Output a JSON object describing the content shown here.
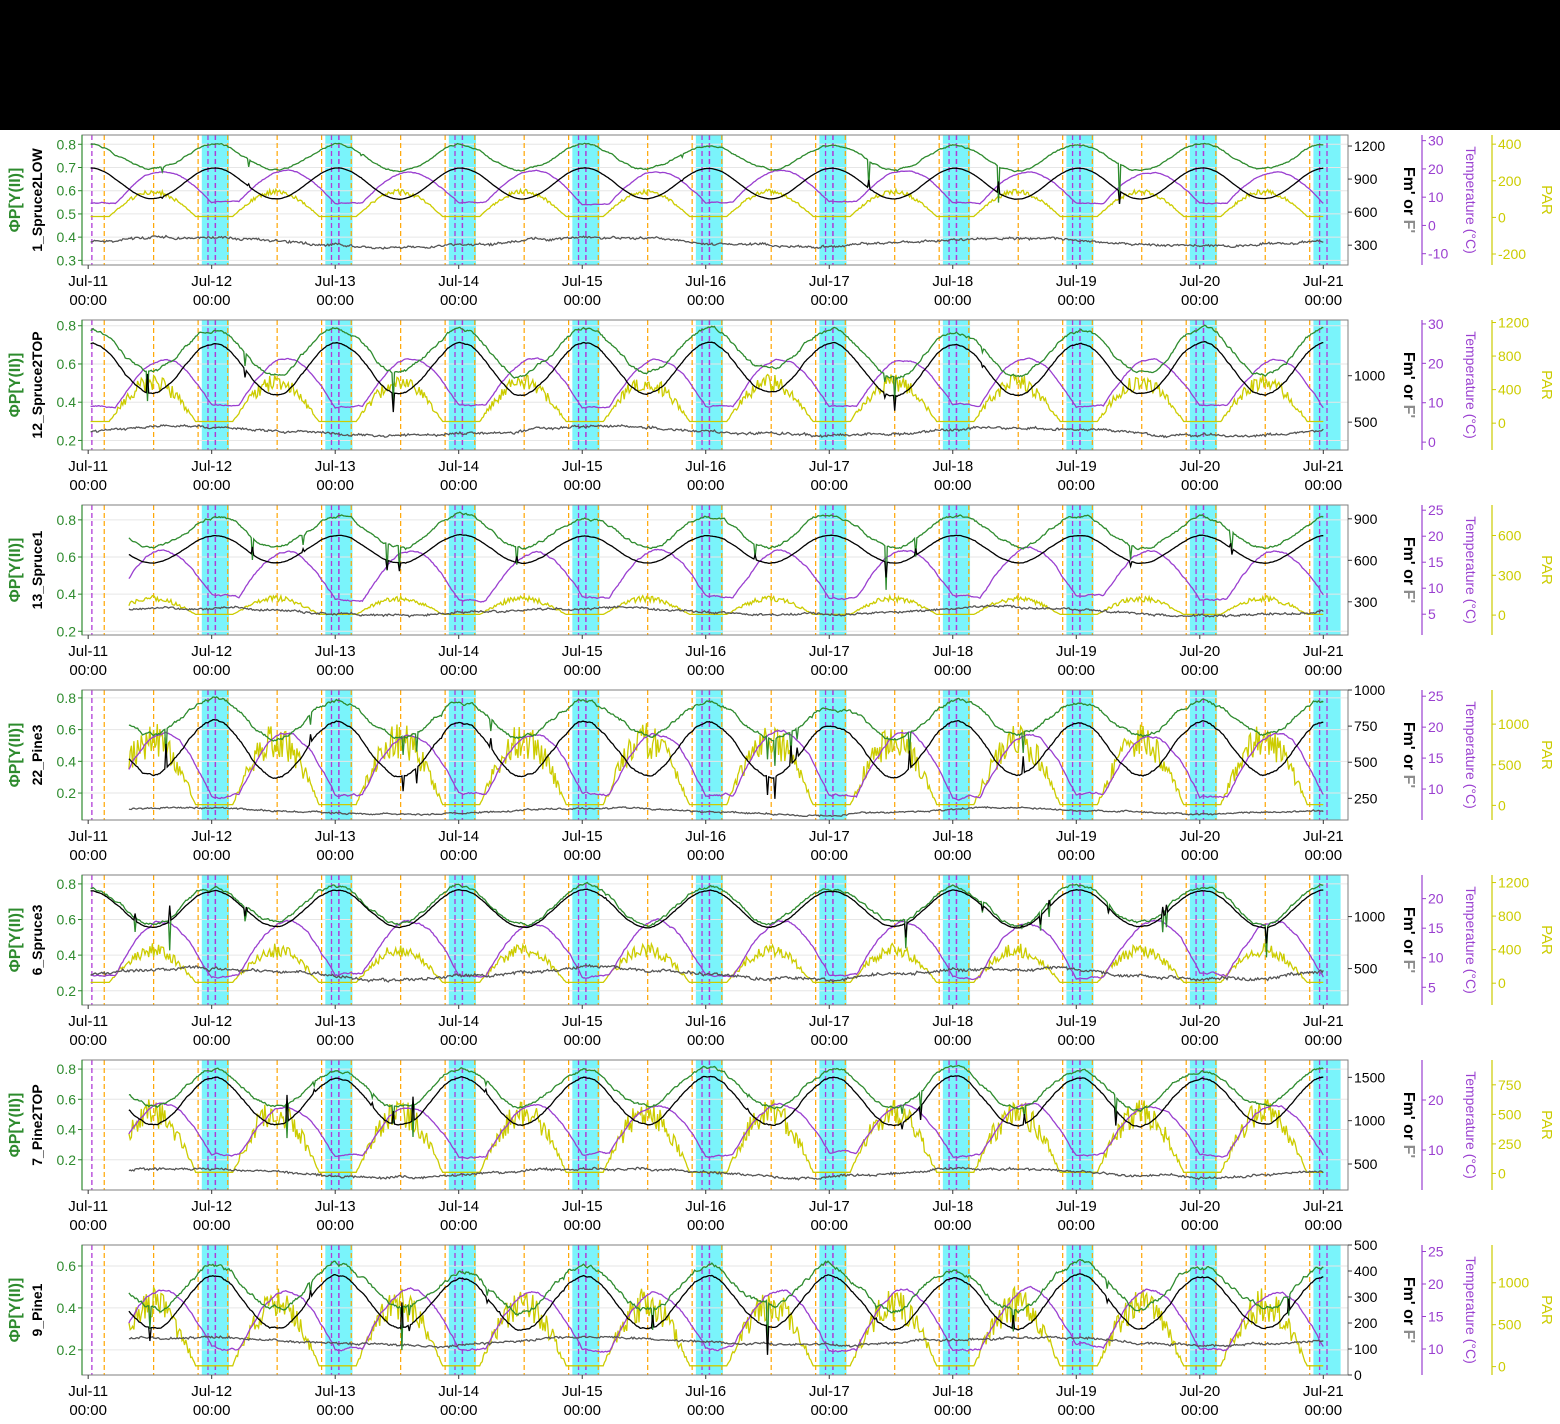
{
  "colors": {
    "yield": "#2e8b2e",
    "fm": "#000000",
    "fprime": "#555555",
    "temp": "#9a3fd0",
    "par": "#cccc00",
    "dawn_dusk": "#ffa500",
    "midnight": "#b03bd6",
    "night_band": "#7af4fb"
  },
  "x_axis": {
    "tick_dates": [
      "Jul-11",
      "Jul-12",
      "Jul-13",
      "Jul-14",
      "Jul-15",
      "Jul-16",
      "Jul-17",
      "Jul-18",
      "Jul-19",
      "Jul-20",
      "Jul-21"
    ],
    "tick_time": "00:00",
    "range_days": [
      -0.05,
      10.2
    ]
  },
  "y_labels": {
    "left": "ΦP[Y(II)]",
    "right_fm_part1": "Fm' ",
    "right_fm_part2": "or ",
    "right_fm_part3": "F'",
    "right_temp": "Temperature (°C)",
    "right_par": "PAR"
  },
  "chart_data": [
    {
      "type": "line",
      "panel": "1_Spruce2LOW",
      "y_left_ticks": [
        0.3,
        0.4,
        0.5,
        0.6,
        0.7,
        0.8
      ],
      "y_left_range": [
        0.28,
        0.84
      ],
      "fm_ticks": [
        300,
        600,
        900,
        1200
      ],
      "fm_range": [
        120,
        1300
      ],
      "temp_ticks": [
        -10,
        0,
        10,
        20,
        30
      ],
      "temp_range": [
        -14,
        32
      ],
      "par_ticks": [
        -200,
        0,
        200,
        400
      ],
      "par_range": [
        -260,
        450
      ],
      "levels": {
        "yield_day": 0.69,
        "yield_night": 0.8,
        "fm_day": 720,
        "fm_night": 1000,
        "f": 330,
        "temp_day": 19,
        "temp_night": 8,
        "par_peak": 130,
        "par_base": 5
      },
      "noise": 0.15,
      "start": 0.02
    },
    {
      "type": "line",
      "panel": "12_Spruce2TOP",
      "y_left_ticks": [
        0.2,
        0.4,
        0.6,
        0.8
      ],
      "y_left_range": [
        0.15,
        0.83
      ],
      "fm_ticks": [
        500,
        1000
      ],
      "fm_range": [
        200,
        1600
      ],
      "temp_ticks": [
        0,
        10,
        20,
        30
      ],
      "temp_range": [
        -2,
        31
      ],
      "par_ticks": [
        0,
        400,
        800,
        1200
      ],
      "par_range": [
        -320,
        1230
      ],
      "levels": {
        "yield_day": 0.55,
        "yield_night": 0.78,
        "fm_day": 800,
        "fm_night": 1350,
        "f": 400,
        "temp_day": 21,
        "temp_night": 9,
        "par_peak": 420,
        "par_base": 20
      },
      "noise": 0.35,
      "start": 0.02
    },
    {
      "type": "line",
      "panel": "13_Spruce1",
      "y_left_ticks": [
        0.2,
        0.4,
        0.6,
        0.8
      ],
      "y_left_range": [
        0.18,
        0.88
      ],
      "fm_ticks": [
        300,
        600,
        900
      ],
      "fm_range": [
        60,
        1000
      ],
      "temp_ticks": [
        5,
        10,
        15,
        20,
        25
      ],
      "temp_range": [
        1,
        26
      ],
      "par_ticks": [
        0,
        300,
        600
      ],
      "par_range": [
        -150,
        830
      ],
      "levels": {
        "yield_day": 0.65,
        "yield_night": 0.82,
        "fm_day": 580,
        "fm_night": 780,
        "f": 230,
        "temp_day": 17,
        "temp_night": 8,
        "par_peak": 110,
        "par_base": 5
      },
      "noise": 0.3,
      "start": 0.33
    },
    {
      "type": "line",
      "panel": "22_Pine3",
      "y_left_ticks": [
        0.2,
        0.4,
        0.6,
        0.8
      ],
      "y_left_range": [
        0.03,
        0.85
      ],
      "fm_ticks": [
        250,
        500,
        750,
        1000
      ],
      "fm_range": [
        100,
        1000
      ],
      "temp_ticks": [
        10,
        15,
        20,
        25
      ],
      "temp_range": [
        5,
        26
      ],
      "par_ticks": [
        0,
        500,
        1000
      ],
      "par_range": [
        -180,
        1420
      ],
      "levels": {
        "yield_day": 0.55,
        "yield_night": 0.78,
        "fm_day": 400,
        "fm_night": 780,
        "f": 160,
        "temp_day": 19,
        "temp_night": 9,
        "par_peak": 700,
        "par_base": 10
      },
      "noise": 0.45,
      "start": 0.33
    },
    {
      "type": "line",
      "panel": "6_Spruce3",
      "y_left_ticks": [
        0.2,
        0.4,
        0.6,
        0.8
      ],
      "y_left_range": [
        0.12,
        0.85
      ],
      "fm_ticks": [
        500,
        1000
      ],
      "fm_range": [
        150,
        1400
      ],
      "temp_ticks": [
        5,
        10,
        15,
        20
      ],
      "temp_range": [
        2,
        24
      ],
      "par_ticks": [
        0,
        400,
        800,
        1200
      ],
      "par_range": [
        -260,
        1290
      ],
      "levels": {
        "yield_day": 0.58,
        "yield_night": 0.78,
        "fm_day": 900,
        "fm_night": 1250,
        "f": 450,
        "temp_day": 16,
        "temp_night": 7,
        "par_peak": 350,
        "par_base": 10
      },
      "noise": 0.35,
      "start": 0.02
    },
    {
      "type": "line",
      "panel": "7_Pine2TOP",
      "y_left_ticks": [
        0.2,
        0.4,
        0.6,
        0.8
      ],
      "y_left_range": [
        0.0,
        0.86
      ],
      "fm_ticks": [
        500,
        1000,
        1500
      ],
      "fm_range": [
        200,
        1700
      ],
      "temp_ticks": [
        10,
        20
      ],
      "temp_range": [
        2,
        28
      ],
      "par_ticks": [
        0,
        250,
        500,
        750
      ],
      "par_range": [
        -140,
        960
      ],
      "levels": {
        "yield_day": 0.55,
        "yield_night": 0.8,
        "fm_day": 950,
        "fm_night": 1500,
        "f": 400,
        "temp_day": 19,
        "temp_night": 9,
        "par_peak": 450,
        "par_base": 10
      },
      "noise": 0.4,
      "start": 0.33
    },
    {
      "type": "line",
      "panel": "9_Pine1",
      "y_left_ticks": [
        0.2,
        0.4,
        0.6
      ],
      "y_left_range": [
        0.08,
        0.7
      ],
      "fm_ticks": [
        0,
        100,
        200,
        300,
        400,
        500
      ],
      "fm_range": [
        0,
        500
      ],
      "temp_ticks": [
        10,
        15,
        20,
        25
      ],
      "temp_range": [
        6,
        26
      ],
      "par_ticks": [
        0,
        500,
        1000
      ],
      "par_range": [
        -100,
        1450
      ],
      "levels": {
        "yield_day": 0.4,
        "yield_night": 0.6,
        "fm_day": 180,
        "fm_night": 380,
        "f": 130,
        "temp_day": 19,
        "temp_night": 10,
        "par_peak": 650,
        "par_base": 10
      },
      "noise": 0.45,
      "start": 0.33
    }
  ]
}
